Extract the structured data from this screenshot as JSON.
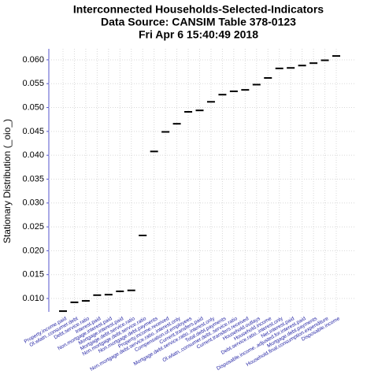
{
  "chart_data": {
    "type": "dot",
    "title": [
      "Interconnected Households-Selected-Indicators",
      "Data Source: CANSIM Table 378-0123",
      "Fri Apr  6 15:40:49 2018"
    ],
    "ylabel": "Stationary Distribution (_oio_)",
    "categories": [
      "Property.income.paid",
      "Ol.wlatn..consumer.debt",
      "Debt.service.ratio",
      "Interest.paid",
      "Non.mortgage.interest.paid",
      "Mortgage.interest.paid",
      "Mortgage.debt.service.ratio",
      "Non.mortgage.debt.service.ratio",
      "Non.mortgage.debt.payments",
      "Property.income.received",
      "Non.mortgage.debt.service.ratio..interest.only",
      "Compensation.of.employees",
      "Current.transfers.paid",
      "Mortgage.debt.service.ratio..interest.only",
      "Total.debt.payments",
      "Ol.wlatn..consumer.debt..service.ratio",
      "Current.transfers.received",
      "Household.outlays",
      "Household.income",
      "Debt.service.ratio..interest.only",
      "Net.interest.paid",
      "Disposable.income..adjusted.for.interest.paid",
      "Mortgage.debt.payments",
      "Household.final.consumption.expenditure",
      "Disposable.income"
    ],
    "values": [
      0.00735,
      0.0092,
      0.0095,
      0.0107,
      0.0108,
      0.0115,
      0.0117,
      0.0232,
      0.0408,
      0.0449,
      0.0466,
      0.0491,
      0.0494,
      0.0512,
      0.0527,
      0.0534,
      0.0537,
      0.0548,
      0.0562,
      0.0582,
      0.0583,
      0.0588,
      0.0593,
      0.0599,
      0.0608
    ],
    "color": "#000000",
    "label_color": "#1a1aa0",
    "ylim": [
      0.0072,
      0.0623
    ],
    "yticks": [
      {
        "value": 0.01,
        "label": "0.010"
      },
      {
        "value": 0.015,
        "label": "0.015"
      },
      {
        "value": 0.02,
        "label": "0.020"
      },
      {
        "value": 0.025,
        "label": "0.025"
      },
      {
        "value": 0.03,
        "label": "0.030"
      },
      {
        "value": 0.035,
        "label": "0.035"
      },
      {
        "value": 0.04,
        "label": "0.040"
      },
      {
        "value": 0.045,
        "label": "0.045"
      },
      {
        "value": 0.05,
        "label": "0.050"
      },
      {
        "value": 0.055,
        "label": "0.055"
      },
      {
        "value": 0.06,
        "label": "0.060"
      }
    ],
    "grid": true
  }
}
